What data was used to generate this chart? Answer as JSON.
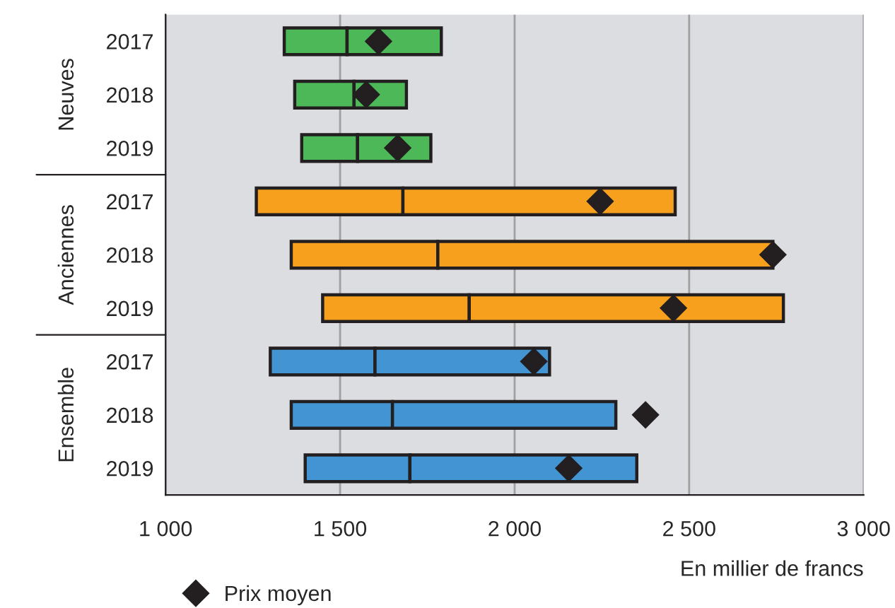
{
  "chart_data": {
    "type": "bar",
    "orientation": "horizontal",
    "xlabel": "En millier de francs",
    "categories": [
      "2017",
      "2018",
      "2019",
      "2017",
      "2018",
      "2019",
      "2017",
      "2018",
      "2019"
    ],
    "series": [
      {
        "base": [
          1340,
          1370,
          1390,
          1260,
          1360,
          1450,
          1300,
          1360,
          1400
        ],
        "colors": [
          "#4cb857",
          "#4cb857",
          "#4cb857",
          "#f7a01e",
          "#f7a01e",
          "#f7a01e",
          "#4394d2",
          "#4394d2",
          "#4394d2"
        ],
        "values": [
          180,
          170,
          160,
          420,
          420,
          420,
          300,
          290,
          300
        ]
      },
      {
        "base": [
          1520,
          1540,
          1550,
          1680,
          1780,
          1870,
          1600,
          1650,
          1700
        ],
        "colors": [
          "#4cb857",
          "#4cb857",
          "#4cb857",
          "#f7a01e",
          "#f7a01e",
          "#f7a01e",
          "#4394d2",
          "#4394d2",
          "#4394d2"
        ],
        "values": [
          270,
          150,
          210,
          780,
          960,
          900,
          500,
          640,
          650
        ]
      },
      {
        "type": "scatter",
        "name": "Prix moyen",
        "color": "#231f20",
        "marker": "diamond",
        "values": [
          1610,
          1575,
          1665,
          2245,
          2740,
          2455,
          2055,
          2375,
          2155
        ]
      }
    ],
    "xlim": [
      1000,
      3000
    ],
    "xticks": [
      {
        "value": 1000,
        "label": "1 000"
      },
      {
        "value": 1500,
        "label": "1 500"
      },
      {
        "value": 2000,
        "label": "2 000"
      },
      {
        "value": 2500,
        "label": "2 500"
      },
      {
        "value": 3000,
        "label": "3 000"
      }
    ],
    "grid": "x",
    "legend": "bottom left",
    "annotations": [
      "Neuves",
      "Anciennes",
      "Ensemble"
    ]
  }
}
